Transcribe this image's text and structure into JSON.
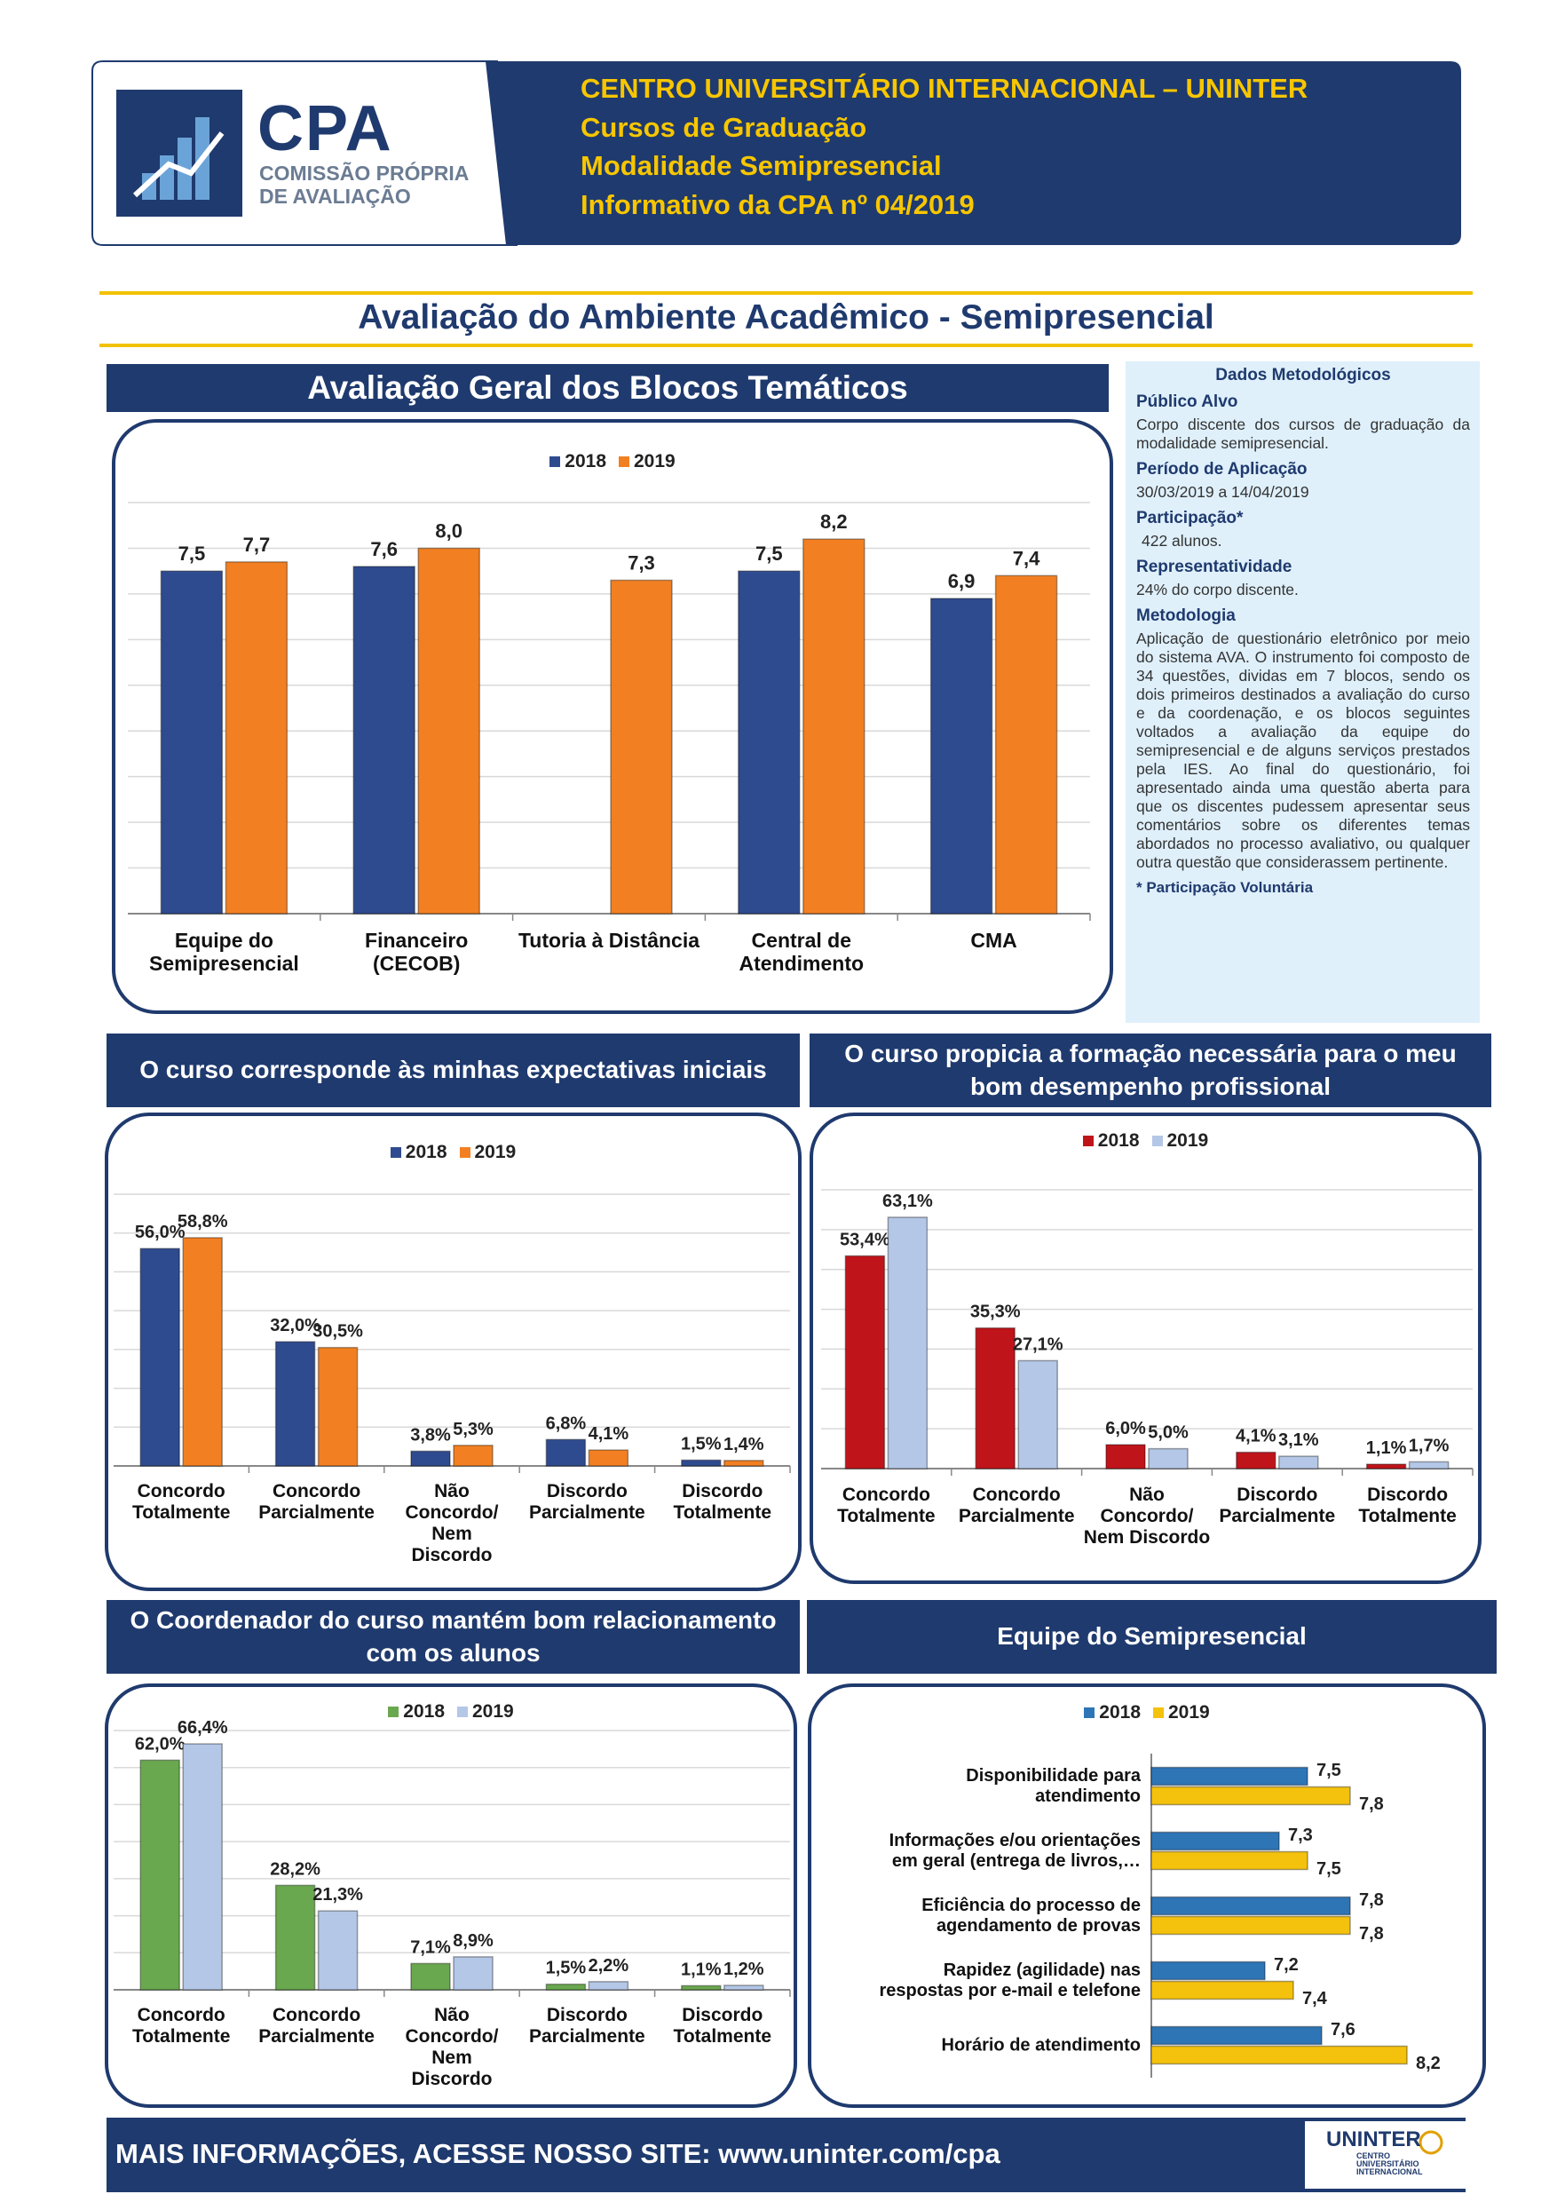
{
  "logo": {
    "acronym": "CPA",
    "name": "COMISSÃO PRÓPRIA\nDE AVALIAÇÃO"
  },
  "header": {
    "lines": [
      "CENTRO UNIVERSITÁRIO INTERNACIONAL – UNINTER",
      "Cursos de Graduação",
      "Modalidade Semipresencial",
      "Informativo da CPA nº 04/2019"
    ]
  },
  "page_title": "Avaliação do Ambiente Acadêmico - Semipresencial",
  "sidebar": {
    "title": "Dados Metodológicos",
    "sections": [
      {
        "heading": "Público Alvo",
        "text": "Corpo discente dos cursos de graduação da modalidade semipresencial."
      },
      {
        "heading": "Período de Aplicação",
        "text": "30/03/2019 a 14/04/2019"
      },
      {
        "heading": "Participação*",
        "text": "422 alunos."
      },
      {
        "heading": "Representatividade",
        "text": "24% do corpo discente."
      },
      {
        "heading": "Metodologia",
        "text": "Aplicação de questionário eletrônico por meio do sistema AVA. O instrumento foi composto de 34 questões, dividas em 7 blocos, sendo os dois primeiros destinados a avaliação do curso e da coordenação, e os blocos seguintes voltados a avaliação da equipe do semipresencial e de alguns serviços prestados pela IES. Ao final do questionário, foi apresentado ainda uma questão aberta para que os discentes pudessem apresentar seus comentários sobre os diferentes temas abordados no processo avaliativo, ou qualquer outra questão que considerassem pertinente."
      }
    ],
    "note": "* Participação Voluntária"
  },
  "chart_data": [
    {
      "type": "bar",
      "title": "Avaliação Geral dos Blocos Temáticos",
      "categories": [
        "Equipe do\nSemipresencial",
        "Financeiro\n(CECOB)",
        "Tutoria à Distância",
        "Central de\nAtendimento",
        "CMA"
      ],
      "series": [
        {
          "name": "2018",
          "color": "#2f4b8f",
          "values": [
            7.5,
            7.6,
            null,
            7.5,
            6.9
          ],
          "value_labels": [
            "7,5",
            "7,6",
            null,
            "7,5",
            "6,9"
          ]
        },
        {
          "name": "2019",
          "color": "#f28022",
          "values": [
            7.7,
            8.0,
            7.3,
            8.2,
            7.4
          ],
          "value_labels": [
            "7,7",
            "8,0",
            "7,3",
            "8,2",
            "7,4"
          ]
        }
      ],
      "ylim": [
        0,
        9
      ],
      "yticks": [
        0,
        1,
        2,
        3,
        4,
        5,
        6,
        7,
        8,
        9
      ],
      "tick_labels": false,
      "grid": true
    },
    {
      "type": "bar",
      "title": "O curso corresponde às minhas expectativas iniciais",
      "categories": [
        "Concordo\nTotalmente",
        "Concordo\nParcialmente",
        "Não\nConcordo/\nNem\nDiscordo",
        "Discordo\nParcialmente",
        "Discordo\nTotalmente"
      ],
      "series": [
        {
          "name": "2018",
          "color": "#2f4b8f",
          "values": [
            56.0,
            32.0,
            3.8,
            6.8,
            1.5
          ],
          "value_labels": [
            "56,0%",
            "32,0%",
            "3,8%",
            "6,8%",
            "1,5%"
          ]
        },
        {
          "name": "2019",
          "color": "#f28022",
          "values": [
            58.8,
            30.5,
            5.3,
            4.1,
            1.4
          ],
          "value_labels": [
            "58,8%",
            "30,5%",
            "5,3%",
            "4,1%",
            "1,4%"
          ]
        }
      ],
      "ylim": [
        0,
        70
      ],
      "yticks": [
        0,
        10,
        20,
        30,
        40,
        50,
        60,
        70
      ],
      "tick_labels": false,
      "grid": true
    },
    {
      "type": "bar",
      "title": "O curso propicia a formação necessária para o meu bom desempenho profissional",
      "categories": [
        "Concordo\nTotalmente",
        "Concordo\nParcialmente",
        "Não\nConcordo/\nNem Discordo",
        "Discordo\nParcialmente",
        "Discordo\nTotalmente"
      ],
      "series": [
        {
          "name": "2018",
          "color": "#c0141b",
          "values": [
            53.4,
            35.3,
            6.0,
            4.1,
            1.1
          ],
          "value_labels": [
            "53,4%",
            "35,3%",
            "6,0%",
            "4,1%",
            "1,1%"
          ]
        },
        {
          "name": "2019",
          "color": "#b4c7e7",
          "values": [
            63.1,
            27.1,
            5.0,
            3.1,
            1.7
          ],
          "value_labels": [
            "63,1%",
            "27,1%",
            "5,0%",
            "3,1%",
            "1,7%"
          ]
        }
      ],
      "ylim": [
        0,
        70
      ],
      "yticks": [
        0,
        10,
        20,
        30,
        40,
        50,
        60,
        70
      ],
      "tick_labels": false,
      "grid": true
    },
    {
      "type": "bar",
      "title": "O Coordenador do curso mantém bom relacionamento com os alunos",
      "categories": [
        "Concordo\nTotalmente",
        "Concordo\nParcialmente",
        "Não\nConcordo/\nNem\nDiscordo",
        "Discordo\nParcialmente",
        "Discordo\nTotalmente"
      ],
      "series": [
        {
          "name": "2018",
          "color": "#6aa84f",
          "values": [
            62.0,
            28.2,
            7.1,
            1.5,
            1.1
          ],
          "value_labels": [
            "62,0%",
            "28,2%",
            "7,1%",
            "1,5%",
            "1,1%"
          ]
        },
        {
          "name": "2019",
          "color": "#b4c7e7",
          "values": [
            66.4,
            21.3,
            8.9,
            2.2,
            1.2
          ],
          "value_labels": [
            "66,4%",
            "21,3%",
            "8,9%",
            "2,2%",
            "1,2%"
          ]
        }
      ],
      "ylim": [
        0,
        70
      ],
      "yticks": [
        0,
        10,
        20,
        30,
        40,
        50,
        60,
        70
      ],
      "tick_labels": false,
      "grid": true
    },
    {
      "type": "barh",
      "title": "Equipe do Semipresencial",
      "categories": [
        "Disponibilidade para\natendimento",
        "Informações e/ou orientações\nem geral (entrega de livros,…",
        "Eficiência do processo de\nagendamento de provas",
        "Rapidez (agilidade) nas\nrespostas por e-mail e telefone",
        "Horário de atendimento"
      ],
      "series": [
        {
          "name": "2018",
          "color": "#2e75b6",
          "values": [
            7.5,
            7.3,
            7.8,
            7.2,
            7.6
          ],
          "value_labels": [
            "7,5",
            "7,3",
            "7,8",
            "7,2",
            "7,6"
          ]
        },
        {
          "name": "2019",
          "color": "#f4c20d",
          "values": [
            7.8,
            7.5,
            7.8,
            7.4,
            8.2
          ],
          "value_labels": [
            "7,8",
            "7,5",
            "7,8",
            "7,4",
            "8,2"
          ]
        }
      ],
      "xlim": [
        6.4,
        8.6
      ],
      "grid": false
    }
  ],
  "footer": {
    "text": "MAIS INFORMAÇÕES, ACESSE NOSSO SITE: www.uninter.com/cpa",
    "logo": "UNINTER",
    "logo_sub": "CENTRO\nUNIVERSITÁRIO\nINTERNACIONAL"
  }
}
